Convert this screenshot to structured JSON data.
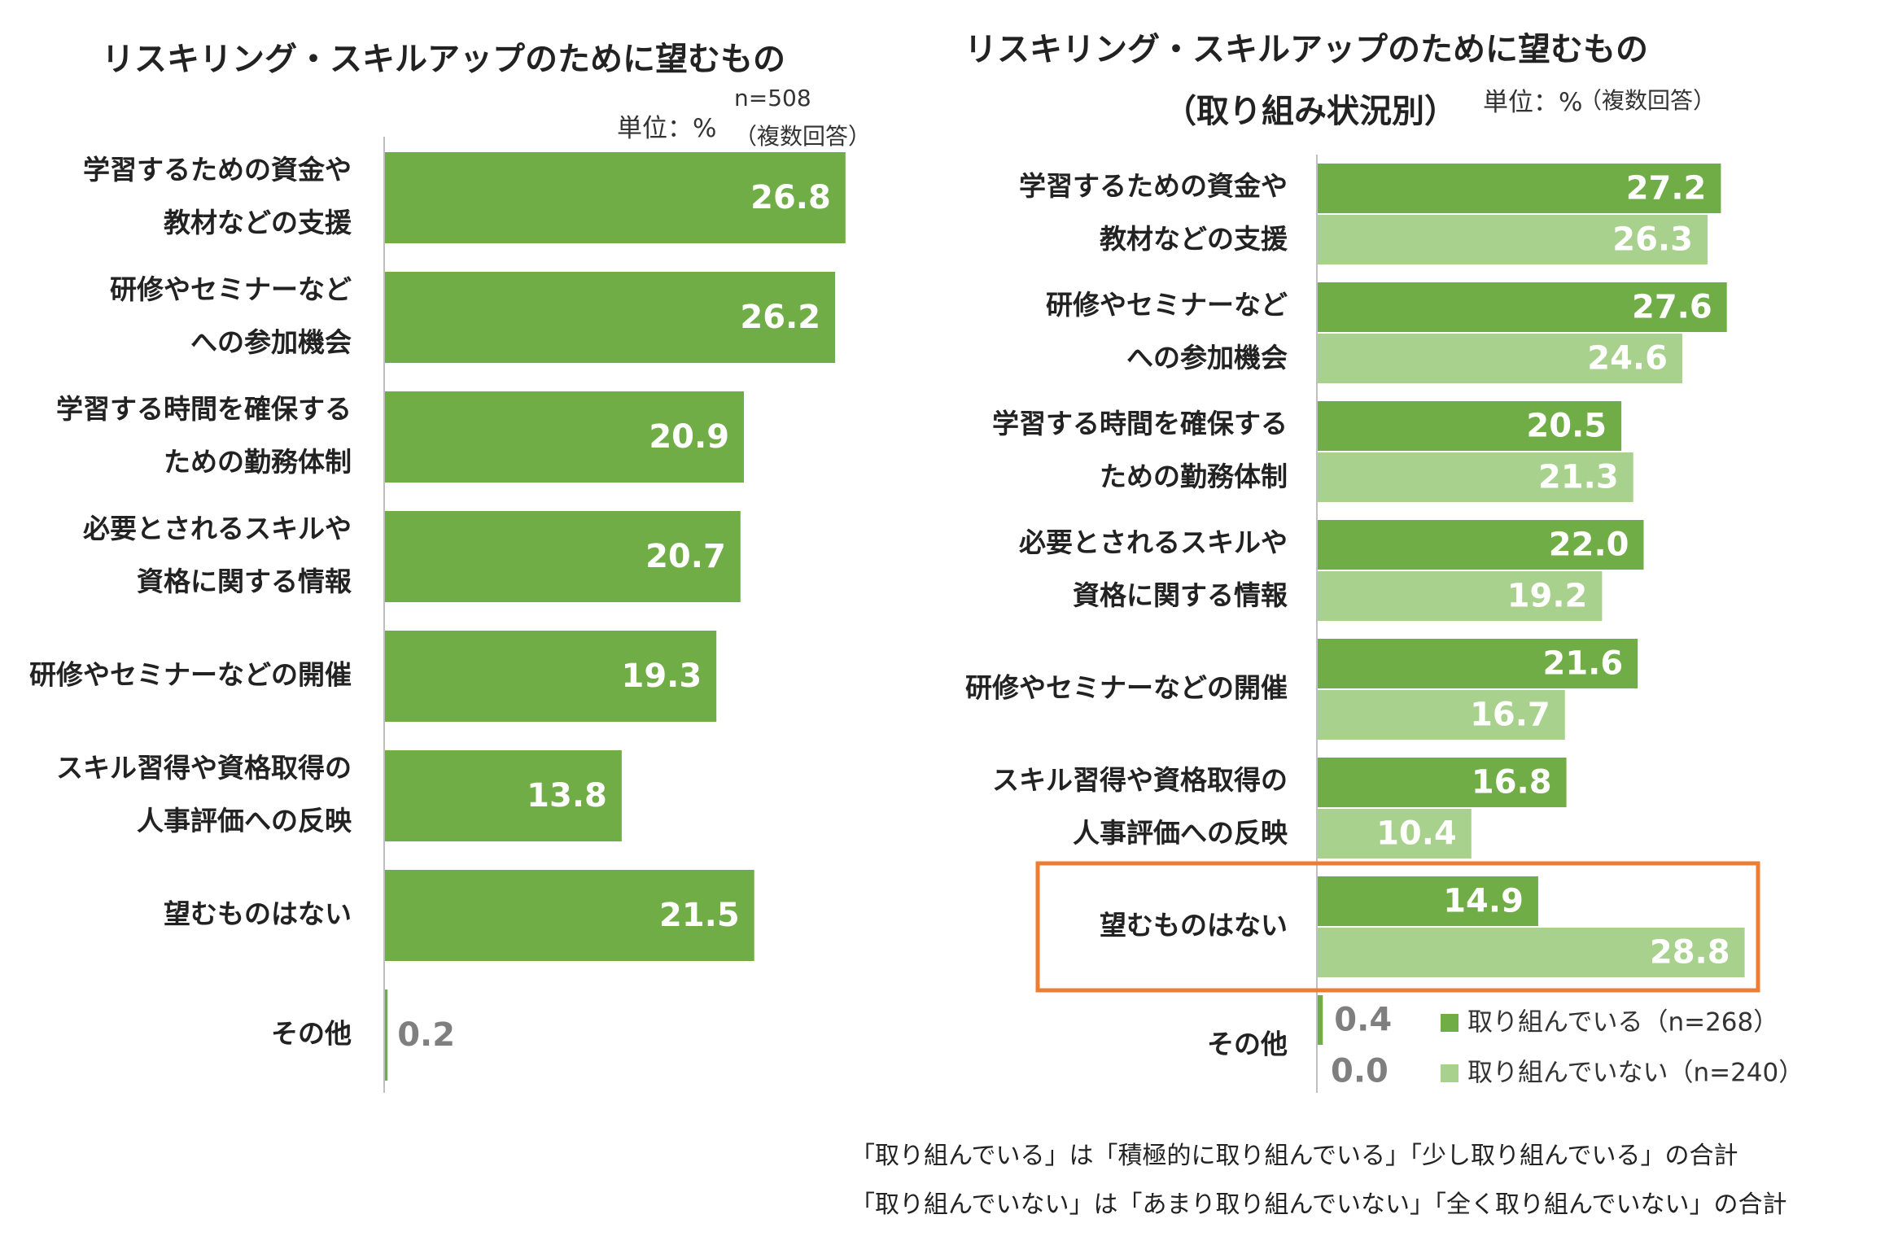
{
  "left_panel": {
    "title": "リスキリング・スキルアップのために望むもの",
    "unit": "単位：%",
    "n_label": "n=508",
    "multi": "（複数回答）"
  },
  "right_panel": {
    "title": "リスキリング・スキルアップのために望むもの",
    "subtitle": "（取り組み状況別）",
    "unit": "単位：%",
    "multi": "（複数回答）"
  },
  "notes": [
    "「取り組んでいる」は「積極的に取り組んでいる」「少し取り組んでいる」の合計",
    "「取り組んでいない」は「あまり取り組んでいない」「全く取り組んでいない」の合計"
  ],
  "colors": {
    "dark_green": "#70ad47",
    "light_green": "#a9d18e",
    "highlight_box": "#ed7d31",
    "axis": "#bfbfbf",
    "outside_label": "#7f7f7f"
  },
  "chart_data": [
    {
      "type": "bar",
      "orientation": "horizontal",
      "title": "リスキリング・スキルアップのために望むもの",
      "unit": "%",
      "categories": [
        [
          "学習するための資金や",
          "教材などの支援"
        ],
        [
          "研修やセミナーなど",
          "への参加機会"
        ],
        [
          "学習する時間を確保する",
          "ための勤務体制"
        ],
        [
          "必要とされるスキルや",
          "資格に関する情報"
        ],
        [
          "研修やセミナーなどの開催"
        ],
        [
          "スキル習得や資格取得の",
          "人事評価への反映"
        ],
        [
          "望むものはない"
        ],
        [
          "その他"
        ]
      ],
      "values": [
        26.8,
        26.2,
        20.9,
        20.7,
        19.3,
        13.8,
        21.5,
        0.2
      ],
      "value_labels": [
        "26.8",
        "26.2",
        "20.9",
        "20.7",
        "19.3",
        "13.8",
        "21.5",
        "0.2"
      ]
    },
    {
      "type": "bar",
      "orientation": "horizontal",
      "title": "リスキリング・スキルアップのために望むもの（取り組み状況別）",
      "unit": "%",
      "categories": [
        [
          "学習するための資金や",
          "教材などの支援"
        ],
        [
          "研修やセミナーなど",
          "への参加機会"
        ],
        [
          "学習する時間を確保する",
          "ための勤務体制"
        ],
        [
          "必要とされるスキルや",
          "資格に関する情報"
        ],
        [
          "研修やセミナーなどの開催"
        ],
        [
          "スキル習得や資格取得の",
          "人事評価への反映"
        ],
        [
          "望むものはない"
        ],
        [
          "その他"
        ]
      ],
      "series": [
        {
          "name": "取り組んでいる（n=268）",
          "values": [
            27.2,
            27.6,
            20.5,
            22.0,
            21.6,
            16.8,
            14.9,
            0.4
          ],
          "value_labels": [
            "27.2",
            "27.6",
            "20.5",
            "22.0",
            "21.6",
            "16.8",
            "14.9",
            "0.4"
          ]
        },
        {
          "name": "取り組んでいない（n=240）",
          "values": [
            26.3,
            24.6,
            21.3,
            19.2,
            16.7,
            10.4,
            28.8,
            0.0
          ],
          "value_labels": [
            "26.3",
            "24.6",
            "21.3",
            "19.2",
            "16.7",
            "10.4",
            "28.8",
            "0.0"
          ]
        }
      ],
      "legend": [
        "取り組んでいる（n=268）",
        "取り組んでいない（n=240）"
      ],
      "highlight_category": "望むものはない"
    }
  ]
}
